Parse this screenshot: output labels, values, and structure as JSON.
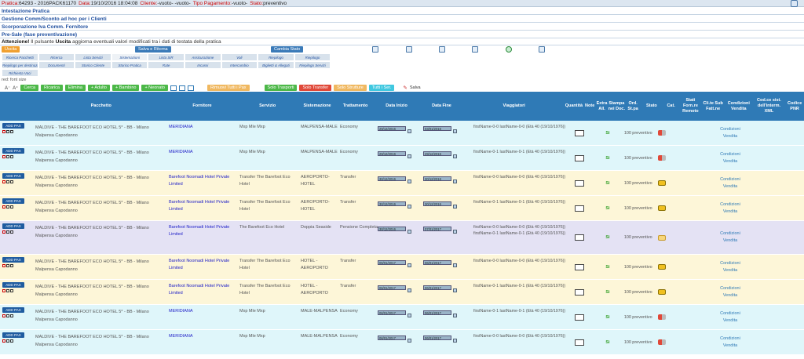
{
  "header": {
    "pratica_label": "Pratica:",
    "pratica_value": "64293 - 2016PACK61170",
    "data_label": "Data:",
    "data_value": "19/10/2016 18:04:08",
    "cliente_label": "Cliente:",
    "cliente_value": "-vuoto- -vuoto-",
    "tipo_label": "Tipo Pagamento:",
    "tipo_value": "-vuoto-",
    "stato_label": "Stato:",
    "stato_value": "preventivo"
  },
  "sections": [
    "Intestazione Pratica",
    "Gestione Comm/Sconto ad hoc per i Clienti",
    "Scorporazione Iva Comm. Fornitore",
    "Pre-Sale (fase preventivazione)"
  ],
  "attention": {
    "label": "Attenzione!",
    "text_before": " Il pulsante ",
    "bold": "Uscita",
    "text_after": " aggiorna eventuali valori modificati tra i dati di testata della pratica"
  },
  "toolbar1": {
    "uscita": "Uscita",
    "salva_ritorna": "Salva e Ritorna",
    "cambia_stato": "Cambia Stato"
  },
  "nav_items": [
    "Ricerca Pacchetti",
    "Ricerca",
    "Lista Servizi",
    "Sistemazioni",
    "Lista SiR",
    "Assicurazione",
    "Voli",
    "Riepilogo",
    "Riepilogo",
    "Riepilogo per destinazione",
    "Documenti",
    "Storico Cliente",
    "Storico Pratica",
    "Rate",
    "Incassi",
    "Intercambio",
    "Biglietti & Allegati",
    "Riepilogo Servizi",
    "Richiesta Voci"
  ],
  "red_font": "red: font size",
  "toolbar2": {
    "cerca": "Cerca",
    "ricarica": "Ricarica",
    "elimina": "Elimina",
    "adulto": "+ Adulto",
    "bambino": "+ Bambino",
    "neonato": "+ Neonato",
    "rimuovi": "Rimuovi Tutti i Pax",
    "solo_trasporti": "Solo Trasporti",
    "solo_transfer": "Solo Transfer",
    "solo_strutture": "Solo Strutture",
    "tutti": "Tutti i Ser.",
    "salva": "Salva"
  },
  "columns": {
    "pacchetto": "Pacchetto",
    "fornitore": "Fornitore",
    "servizio": "Servizio",
    "sistemazione": "Sistemazione",
    "trattamento": "Trattamento",
    "data_inizio": "Data Inizio",
    "data_fine": "Data Fine",
    "viaggiatori": "Viaggiatori",
    "quantita": "Quantità",
    "note": "Note",
    "extra": "Extra All.",
    "stampa": "Stampa nei Doc.",
    "ord": "Ord. St.pa",
    "stato": "Stato",
    "cat": "Cat.",
    "stati_forn": "Stati Forn.re Remoto",
    "cli_te": "Cli.te Sub Fatt.ne",
    "condizioni": "Condizioni Vendita",
    "cod_ce": "Cod.ce sist. dell'interm. XML",
    "codice_pnr": "Codice PNR"
  },
  "add_pax": "ADD PAX",
  "rows": [
    {
      "bg": "c",
      "pacchetto": "MALDIVE - THE BAREFOOT ECO HOTEL 5* - BB - Milano Malpensa Capodanno",
      "fornitore": "MERIDIANA",
      "servizio": "Mxp Mle Mxp",
      "sistemazione": "MALPENSA-MALE",
      "trattamento": "Economy",
      "data_inizio": "29/12/2016",
      "data_fine": "03/01/2016",
      "viaggiatori": [
        "firstName-0-0 lastName-0-0 (Età 40 (19/10/1976))"
      ],
      "si": "Si",
      "ord": "100",
      "stato": "preventivo",
      "cat": "r",
      "cond": "Condizioni Vendita"
    },
    {
      "bg": "c",
      "pacchetto": "MALDIVE - THE BAREFOOT ECO HOTEL 5* - BB - Milano Malpensa Capodanno",
      "fornitore": "MERIDIANA",
      "servizio": "Mxp Mle Mxp",
      "sistemazione": "MALPENSA-MALE",
      "trattamento": "Economy",
      "data_inizio": "29/12/2016",
      "data_fine": "29/12/2016",
      "viaggiatori": [
        "firstName-0-1 lastName-0-1 (Età 40 (19/10/1976))"
      ],
      "si": "Si",
      "ord": "100",
      "stato": "preventivo",
      "cat": "r",
      "cond": "Condizioni Vendita"
    },
    {
      "bg": "y",
      "pacchetto": "MALDIVE - THE BAREFOOT ECO HOTEL 5* - BB - Milano Malpensa Capodanno",
      "fornitore": "Barefoot Noomadi Hotel Private Limited",
      "servizio": "Transfer The Barefoot Eco Hotel",
      "sistemazione": "AEROPORTO-HOTEL",
      "trattamento": "Transfer",
      "data_inizio": "30/12/2016",
      "data_fine": "30/12/2016",
      "viaggiatori": [
        "firstName-0-0 lastName-0-0 (Età 40 (19/10/1976))"
      ],
      "si": "Si",
      "ord": "100",
      "stato": "preventivo",
      "cat": "y",
      "cond": "Condizioni Vendita"
    },
    {
      "bg": "y",
      "pacchetto": "MALDIVE - THE BAREFOOT ECO HOTEL 5* - BB - Milano Malpensa Capodanno",
      "fornitore": "Barefoot Noomadi Hotel Private Limited",
      "servizio": "Transfer The Barefoot Eco Hotel",
      "sistemazione": "AEROPORTO-HOTEL",
      "trattamento": "Transfer",
      "data_inizio": "30/12/2016",
      "data_fine": "30/12/2016",
      "viaggiatori": [
        "firstName-0-1 lastName-0-1 (Età 40 (19/10/1976))"
      ],
      "si": "Si",
      "ord": "100",
      "stato": "preventivo",
      "cat": "y",
      "cond": "Condizioni Vendita"
    },
    {
      "bg": "p",
      "pacchetto": "MALDIVE - THE BAREFOOT ECO HOTEL 5* - BB - Milano Malpensa Capodanno",
      "fornitore": "Barefoot Noomadi Hotel Private Limited",
      "servizio": "The Barefoot Eco Hotel",
      "sistemazione": "Doppia Seaside",
      "trattamento": "Pensione Completa",
      "data_inizio": "30/12/2016",
      "data_fine": "07/01/2017",
      "viaggiatori": [
        "firstName-0-0 lastName-0-0 (Età 40 (19/10/1976))",
        "firstName-0-1 lastName-0-1 (Età 40 (19/10/1976))"
      ],
      "si": "Si",
      "ord": "100",
      "stato": "preventivo",
      "cat": "h",
      "cond": "Condizioni Vendita"
    },
    {
      "bg": "y",
      "pacchetto": "MALDIVE - THE BAREFOOT ECO HOTEL 5* - BB - Milano Malpensa Capodanno",
      "fornitore": "Barefoot Noomadi Hotel Private Limited",
      "servizio": "Transfer The Barefoot Eco Hotel",
      "sistemazione": "HOTEL - AEROPORTO",
      "trattamento": "Transfer",
      "data_inizio": "06/01/2017",
      "data_fine": "06/01/2017",
      "viaggiatori": [
        "firstName-0-0 lastName-0-0 (Età 40 (19/10/1976))"
      ],
      "si": "Si",
      "ord": "100",
      "stato": "preventivo",
      "cat": "y",
      "cond": "Condizioni Vendita"
    },
    {
      "bg": "y",
      "pacchetto": "MALDIVE - THE BAREFOOT ECO HOTEL 5* - BB - Milano Malpensa Capodanno",
      "fornitore": "Barefoot Noomadi Hotel Private Limited",
      "servizio": "Transfer The Barefoot Eco Hotel",
      "sistemazione": "HOTEL - AEROPORTO",
      "trattamento": "Transfer",
      "data_inizio": "06/01/2017",
      "data_fine": "06/01/2017",
      "viaggiatori": [
        "firstName-0-1 lastName-0-1 (Età 40 (19/10/1976))"
      ],
      "si": "Si",
      "ord": "100",
      "stato": "preventivo",
      "cat": "y",
      "cond": "Condizioni Vendita"
    },
    {
      "bg": "c",
      "pacchetto": "MALDIVE - THE BAREFOOT ECO HOTEL 5* - BB - Milano Malpensa Capodanno",
      "fornitore": "MERIDIANA",
      "servizio": "Mxp Mle Mxp",
      "sistemazione": "MALE-MALPENSA",
      "trattamento": "Economy",
      "data_inizio": "06/01/2017",
      "data_fine": "06/01/2017",
      "viaggiatori": [
        "firstName-0-1 lastName-0-1 (Età 40 (19/10/1976))"
      ],
      "si": "Si",
      "ord": "100",
      "stato": "preventivo",
      "cat": "r",
      "cond": "Condizioni Vendita"
    },
    {
      "bg": "c",
      "pacchetto": "MALDIVE - THE BAREFOOT ECO HOTEL 5* - BB - Milano Malpensa Capodanno",
      "fornitore": "MERIDIANA",
      "servizio": "Mxp Mle Mxp",
      "sistemazione": "MALE-MALPENSA",
      "trattamento": "Economy",
      "data_inizio": "06/01/2017",
      "data_fine": "06/01/2017",
      "viaggiatori": [
        "firstName-0-0 lastName-0-0 (Età 40 (19/10/1976))"
      ],
      "si": "Si",
      "ord": "100",
      "stato": "preventivo",
      "cat": "r",
      "cond": "Condizioni Vendita"
    }
  ]
}
